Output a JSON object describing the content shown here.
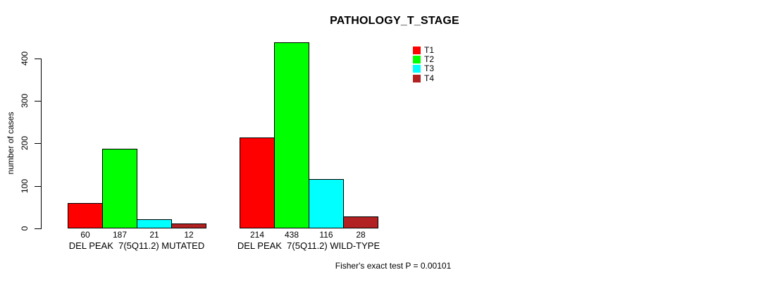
{
  "chart_data": {
    "type": "bar",
    "title": "PATHOLOGY_T_STAGE",
    "ylabel": "number of cases",
    "xlabel": "",
    "ylim": [
      0,
      440
    ],
    "yticks": [
      0,
      100,
      200,
      300,
      400
    ],
    "grid": false,
    "legend_position": "top-right",
    "background_color": "#FFFFFF",
    "axis_color": "#000000",
    "text_color": "#000000",
    "categories": [
      "DEL PEAK  7(5Q11.2) MUTATED",
      "DEL PEAK  7(5Q11.2) WILD-TYPE"
    ],
    "series": [
      {
        "name": "T1",
        "color": "#FF0000",
        "values": [
          60,
          214
        ]
      },
      {
        "name": "T2",
        "color": "#00FF00",
        "values": [
          187,
          438
        ]
      },
      {
        "name": "T3",
        "color": "#00FFFF",
        "values": [
          21,
          116
        ]
      },
      {
        "name": "T4",
        "color": "#B22222",
        "values": [
          12,
          28
        ]
      }
    ],
    "show_values_under_bars": true,
    "annotation": "Fisher's exact test P = 0.00101"
  }
}
